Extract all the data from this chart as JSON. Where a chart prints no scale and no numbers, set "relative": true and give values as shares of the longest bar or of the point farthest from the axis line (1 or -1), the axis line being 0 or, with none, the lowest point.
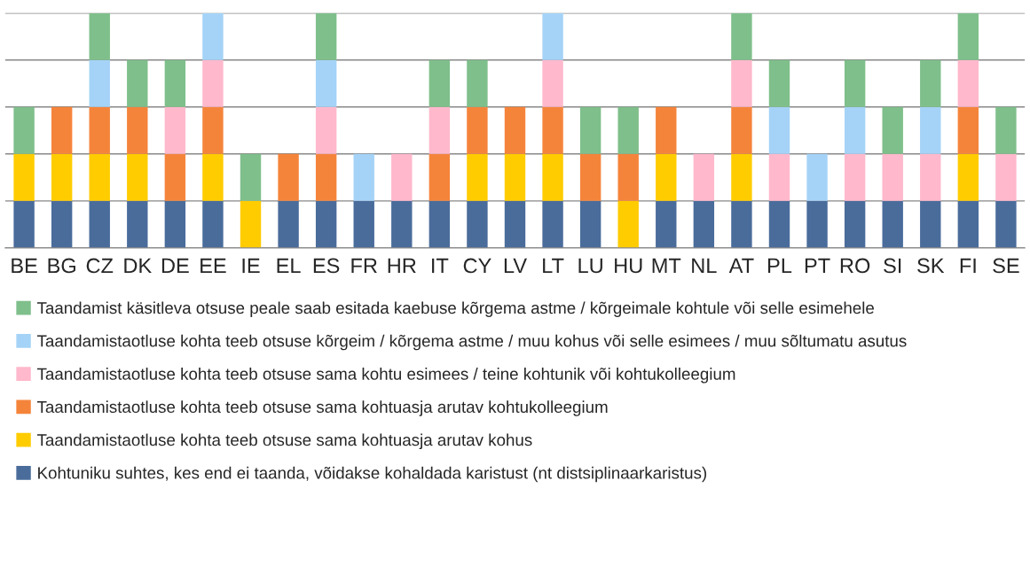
{
  "chart_data": {
    "type": "bar",
    "stacked": true,
    "relative": true,
    "grid": "y",
    "legend": "bottom",
    "categories": [
      "BE",
      "BG",
      "CZ",
      "DK",
      "DE",
      "EE",
      "IE",
      "EL",
      "ES",
      "FR",
      "HR",
      "IT",
      "CY",
      "LV",
      "LT",
      "LU",
      "HU",
      "MT",
      "NL",
      "AT",
      "PL",
      "PT",
      "RO",
      "SI",
      "SK",
      "FI",
      "SE"
    ],
    "series": [
      {
        "name": "Kohtuniku suhtes, kes end ei taanda, võidakse kohaldada karistust (nt distsiplinaarkaristus)",
        "color": "#4a6c9b",
        "values": [
          0.2,
          0.2,
          0.2,
          0.2,
          0.2,
          0.2,
          0,
          0.2,
          0.2,
          0.2,
          0.2,
          0.2,
          0.2,
          0.2,
          0.2,
          0.2,
          0,
          0.2,
          0.2,
          0.2,
          0.2,
          0.2,
          0.2,
          0.2,
          0.2,
          0.2,
          0.2
        ]
      },
      {
        "name": "Taandamistaotluse kohta teeb otsuse sama kohtuasja arutav kohus",
        "color": "#ffcc00",
        "values": [
          0.2,
          0.2,
          0.2,
          0.2,
          0,
          0.2,
          0.2,
          0,
          0,
          0,
          0,
          0,
          0.2,
          0.2,
          0.2,
          0,
          0.2,
          0.2,
          0,
          0.2,
          0,
          0,
          0,
          0,
          0,
          0.2,
          0
        ]
      },
      {
        "name": "Taandamistaotluse kohta teeb otsuse sama kohtuasja arutav kohtukolleegium",
        "color": "#f5843b",
        "values": [
          0,
          0.2,
          0.2,
          0.2,
          0.2,
          0.2,
          0,
          0.2,
          0.2,
          0,
          0,
          0.2,
          0.2,
          0.2,
          0.2,
          0.2,
          0.2,
          0.2,
          0,
          0.2,
          0,
          0,
          0,
          0,
          0,
          0.2,
          0
        ]
      },
      {
        "name": "Taandamistaotluse kohta teeb otsuse sama kohtu esimees / teine kohtunik või kohtukolleegium",
        "color": "#ffb8cc",
        "values": [
          0,
          0,
          0,
          0,
          0.2,
          0.2,
          0,
          0,
          0.2,
          0,
          0.2,
          0.2,
          0,
          0,
          0.2,
          0,
          0,
          0,
          0.2,
          0.2,
          0.2,
          0,
          0.2,
          0.2,
          0.2,
          0.2,
          0.2
        ]
      },
      {
        "name": "Taandamistaotluse kohta teeb otsuse kõrgeim / kõrgema astme / muu kohus või selle esimees / muu sõltumatu asutus",
        "color": "#a5d3f7",
        "values": [
          0,
          0,
          0.2,
          0,
          0,
          0.2,
          0,
          0,
          0.2,
          0.2,
          0,
          0,
          0,
          0,
          0.2,
          0,
          0,
          0,
          0,
          0,
          0.2,
          0.2,
          0.2,
          0,
          0.2,
          0,
          0
        ]
      },
      {
        "name": "Taandamist käsitleva otsuse peale saab esitada kaebuse kõrgema astme / kõrgeimale kohtule või selle esimehele",
        "color": "#7fbf8b",
        "values": [
          0.2,
          0,
          0.2,
          0.2,
          0.2,
          0,
          0.2,
          0,
          0.2,
          0,
          0,
          0.2,
          0.2,
          0,
          0,
          0.2,
          0.2,
          0,
          0,
          0.2,
          0.2,
          0,
          0.2,
          0.2,
          0.2,
          0.2,
          0.2
        ]
      }
    ]
  }
}
